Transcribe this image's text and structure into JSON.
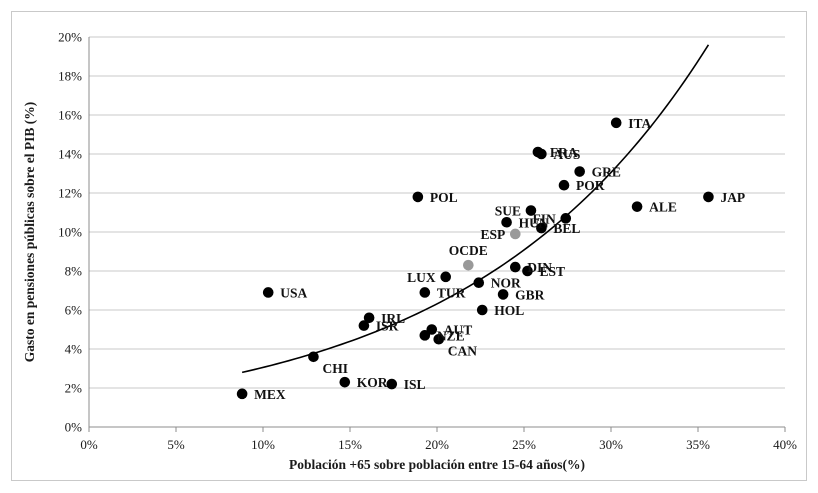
{
  "chart_data": {
    "type": "scatter",
    "title": "",
    "xlabel": "Población +65 sobre población entre 15-64 años(%)",
    "ylabel": "Gasto en pensiones públicas sobre el PIB (%)",
    "xlim": [
      0,
      40
    ],
    "ylim": [
      0,
      20
    ],
    "x_ticks": [
      0,
      5,
      10,
      15,
      20,
      25,
      30,
      35,
      40
    ],
    "y_ticks": [
      0,
      2,
      4,
      6,
      8,
      10,
      12,
      14,
      16,
      18,
      20
    ],
    "x_tick_labels": [
      "0%",
      "5%",
      "10%",
      "15%",
      "20%",
      "25%",
      "30%",
      "35%",
      "40%"
    ],
    "y_tick_labels": [
      "0%",
      "2%",
      "4%",
      "6%",
      "8%",
      "10%",
      "12%",
      "14%",
      "16%",
      "18%",
      "20%"
    ],
    "grid": "horizontal",
    "legend": "none",
    "colors": {
      "default": "#000000",
      "highlight": "#999999",
      "grid": "#c8c8c8",
      "axis": "#8c8c8c"
    },
    "points": [
      {
        "label": "MEX",
        "x": 8.8,
        "y": 1.7,
        "color": "default",
        "label_pos": "right"
      },
      {
        "label": "KOR",
        "x": 14.7,
        "y": 2.3,
        "color": "default",
        "label_pos": "right"
      },
      {
        "label": "ISL",
        "x": 17.4,
        "y": 2.2,
        "color": "default",
        "label_pos": "right"
      },
      {
        "label": "CHI",
        "x": 12.9,
        "y": 3.6,
        "color": "default",
        "label_pos": "below-right"
      },
      {
        "label": "USA",
        "x": 10.3,
        "y": 6.9,
        "color": "default",
        "label_pos": "right"
      },
      {
        "label": "IRL",
        "x": 16.1,
        "y": 5.6,
        "color": "default",
        "label_pos": "right"
      },
      {
        "label": "ISR",
        "x": 15.8,
        "y": 5.2,
        "color": "default",
        "label_pos": "right"
      },
      {
        "label": "NZE",
        "x": 19.3,
        "y": 4.7,
        "color": "default",
        "label_pos": "right"
      },
      {
        "label": "AUT",
        "x": 19.7,
        "y": 5.0,
        "color": "default",
        "label_pos": "right"
      },
      {
        "label": "CAN",
        "x": 20.1,
        "y": 4.5,
        "color": "default",
        "label_pos": "below-right"
      },
      {
        "label": "TUR",
        "x": 19.3,
        "y": 6.9,
        "color": "default",
        "label_pos": "right"
      },
      {
        "label": "LUX",
        "x": 20.5,
        "y": 7.7,
        "color": "default",
        "label_pos": "left"
      },
      {
        "label": "OCDE",
        "x": 21.8,
        "y": 8.3,
        "color": "highlight",
        "label_pos": "above"
      },
      {
        "label": "HOL",
        "x": 22.6,
        "y": 6.0,
        "color": "default",
        "label_pos": "right"
      },
      {
        "label": "NOR",
        "x": 22.4,
        "y": 7.4,
        "color": "default",
        "label_pos": "right"
      },
      {
        "label": "GBR",
        "x": 23.8,
        "y": 6.8,
        "color": "default",
        "label_pos": "right"
      },
      {
        "label": "DIN",
        "x": 24.5,
        "y": 8.2,
        "color": "default",
        "label_pos": "right"
      },
      {
        "label": "EST",
        "x": 25.2,
        "y": 8.0,
        "color": "default",
        "label_pos": "right"
      },
      {
        "label": "POL",
        "x": 18.9,
        "y": 11.8,
        "color": "default",
        "label_pos": "right"
      },
      {
        "label": "ESP",
        "x": 24.5,
        "y": 9.9,
        "color": "highlight",
        "label_pos": "left"
      },
      {
        "label": "HUN",
        "x": 24.0,
        "y": 10.5,
        "color": "default",
        "label_pos": "right"
      },
      {
        "label": "SUE",
        "x": 25.4,
        "y": 11.1,
        "color": "default",
        "label_pos": "left"
      },
      {
        "label": "BEL",
        "x": 26.0,
        "y": 10.2,
        "color": "default",
        "label_pos": "right"
      },
      {
        "label": "FIN",
        "x": 27.4,
        "y": 10.7,
        "color": "default",
        "label_pos": "left"
      },
      {
        "label": "POR",
        "x": 27.3,
        "y": 12.4,
        "color": "default",
        "label_pos": "right"
      },
      {
        "label": "GRE",
        "x": 28.2,
        "y": 13.1,
        "color": "default",
        "label_pos": "right"
      },
      {
        "label": "FRA",
        "x": 25.8,
        "y": 14.1,
        "color": "default",
        "label_pos": "right"
      },
      {
        "label": "AUS",
        "x": 26.0,
        "y": 14.0,
        "color": "default",
        "label_pos": "right"
      },
      {
        "label": "ITA",
        "x": 30.3,
        "y": 15.6,
        "color": "default",
        "label_pos": "right"
      },
      {
        "label": "ALE",
        "x": 31.5,
        "y": 11.3,
        "color": "default",
        "label_pos": "right"
      },
      {
        "label": "JAP",
        "x": 35.6,
        "y": 11.8,
        "color": "default",
        "label_pos": "right"
      }
    ],
    "trendline": {
      "type": "exponential",
      "x_range": [
        8.8,
        35.6
      ],
      "y_start": 2.8,
      "y_end": 19.6
    }
  }
}
